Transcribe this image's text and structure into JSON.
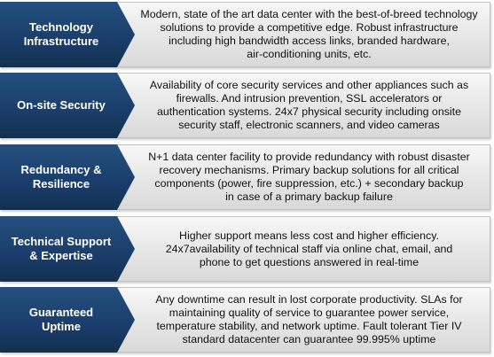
{
  "colors": {
    "label_bg": "#1a3d6b",
    "panel_bg": "#e6e6e6",
    "text": "#111111"
  },
  "rows": [
    {
      "label": "Technology\nInfrastructure",
      "description": "Modern, state of the art data center with the best-of-breed technology\nsolutions to provide a competitive edge. Robust infrastructure\nincluding high bandwidth access links, branded hardware,\nair-conditioning units, etc."
    },
    {
      "label": "On-site Security",
      "description": "Availability of core security services and other appliances such as\nfirewalls. And intrusion prevention, SSL accelerators or\nauthentication systems. 24x7 physical security including onsite\nsecurity staff, electronic scanners, and video cameras"
    },
    {
      "label": "Redundancy &\nResilience",
      "description": "N+1 data center facility to provide redundancy with robust disaster\nrecovery mechanisms. Primary backup solutions for all critical\ncomponents (power, fire suppression, etc.) + secondary backup\nin case of a primary backup failure"
    },
    {
      "label": "Technical Support\n& Expertise",
      "description": "Higher support means less cost and higher efficiency.\n24x7availability of technical staff via online chat, email, and\nphone to get questions answered in real-time"
    },
    {
      "label": "Guaranteed\nUptime",
      "description": "Any downtime can result in lost corporate productivity. SLAs for\nmaintaining quality of service to guarantee power service,\ntemperature stability, and network uptime. Fault tolerant Tier IV\nstandard datacenter can guarantee 99.995% uptime"
    }
  ]
}
